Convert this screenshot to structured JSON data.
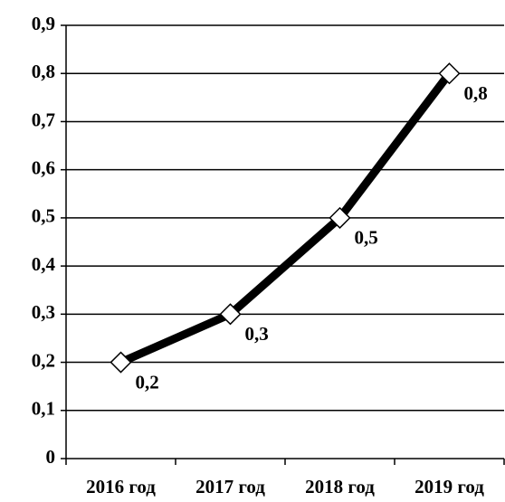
{
  "chart_data": {
    "type": "line",
    "categories": [
      "2016 год",
      "2017 год",
      "2018 год",
      "2019 год"
    ],
    "series": [
      {
        "color": "#000000",
        "values": [
          0.2,
          0.3,
          0.5,
          0.8
        ],
        "value_labels": [
          "0,2",
          "0,3",
          "0,5",
          "0,8"
        ]
      }
    ],
    "ylim": [
      0,
      0.9
    ],
    "yticks": [
      0,
      {
        "value": 0.1,
        "label": "0,1"
      },
      {
        "value": 0.2,
        "label": "0,2"
      },
      {
        "value": 0.3,
        "label": "0,3"
      },
      {
        "value": 0.4,
        "label": "0,4"
      },
      {
        "value": 0.5,
        "label": "0,5"
      },
      {
        "value": 0.6,
        "label": "0,6"
      },
      {
        "value": 0.7,
        "label": "0,7"
      },
      {
        "value": 0.8,
        "label": "0,8"
      },
      {
        "value": 0.9,
        "label": "0,9"
      }
    ],
    "grid": true
  }
}
